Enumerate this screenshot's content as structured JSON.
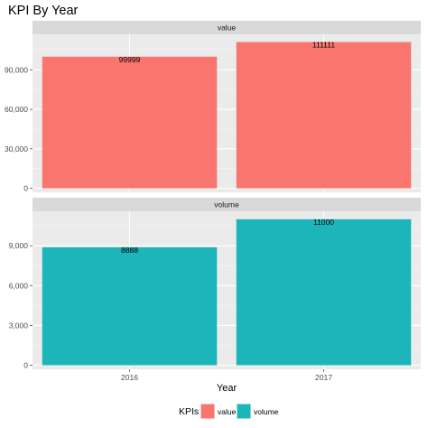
{
  "chart_data": {
    "type": "bar",
    "title": "KPI By Year",
    "xlabel": "Year",
    "categories": [
      "2016",
      "2017"
    ],
    "facets": [
      {
        "name": "value",
        "color": "#F8766D",
        "values": [
          99999,
          111111
        ],
        "labels": [
          "99999",
          "111111"
        ],
        "yticks": [
          0,
          30000,
          60000,
          90000
        ],
        "ytick_labels": [
          "0",
          "30,000",
          "60,000",
          "90,000"
        ],
        "ylim": [
          0,
          117000
        ]
      },
      {
        "name": "volume",
        "color": "#1CB5B9",
        "values": [
          8888,
          11000
        ],
        "labels": [
          "8888",
          "11000"
        ],
        "yticks": [
          0,
          3000,
          6000,
          9000
        ],
        "ytick_labels": [
          "0",
          "3,000",
          "6,000",
          "9,000"
        ],
        "ylim": [
          0,
          11600
        ]
      }
    ],
    "legend": {
      "title": "KPIs",
      "position": "bottom",
      "items": [
        {
          "label": "value",
          "color": "#F8766D"
        },
        {
          "label": "volume",
          "color": "#1CB5B9"
        }
      ]
    },
    "grid": true,
    "facet_wrap": "vertical"
  }
}
